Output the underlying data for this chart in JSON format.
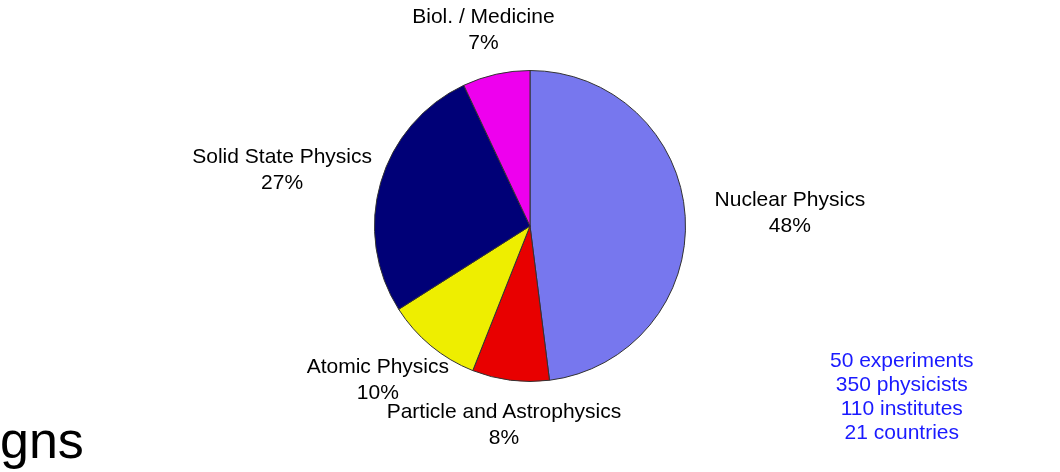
{
  "chart_data": {
    "type": "pie",
    "categories": [
      "Nuclear Physics",
      "Particle and Astrophysics",
      "Atomic Physics",
      "Solid State Physics",
      "Biol. / Medicine"
    ],
    "values": [
      48,
      8,
      10,
      27,
      7
    ],
    "colors": [
      "#7777ee",
      "#e80000",
      "#eeee00",
      "#000077",
      "#ee00ee"
    ],
    "data_labels": true,
    "value_labels": [
      "48%",
      "8%",
      "10%",
      "27%",
      "7%"
    ],
    "annotations": [
      "50 experiments",
      "350 physicists",
      "110 institutes",
      "21 countries",
      "gns"
    ]
  }
}
